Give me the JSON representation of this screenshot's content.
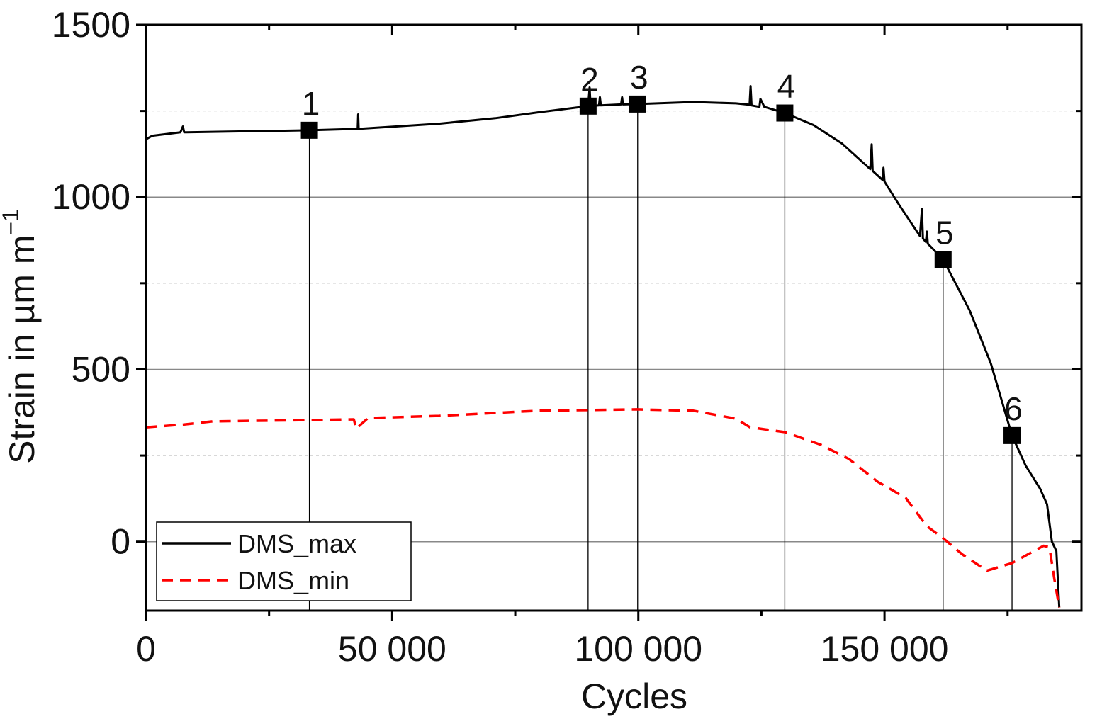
{
  "chart_data": {
    "type": "line",
    "title": "",
    "xlabel": "Cycles",
    "ylabel": "Strain in µm m",
    "ylabel_superscript": "−1",
    "xlim": [
      0,
      190000
    ],
    "ylim": [
      -200,
      1500
    ],
    "x_ticks": [
      0,
      50000,
      100000,
      150000
    ],
    "x_tick_labels": [
      "0",
      "50 000",
      "100 000",
      "150 000"
    ],
    "y_ticks": [
      0,
      500,
      1000,
      1500
    ],
    "y_tick_labels": [
      "0",
      "500",
      "1000",
      "1500"
    ],
    "x_minor_step": 25000,
    "y_minor_step": 250,
    "grid": true,
    "legend_position": "bottom-left",
    "colors": {
      "DMS_max": "#000000",
      "DMS_min": "#ff0000"
    },
    "series": [
      {
        "name": "DMS_max",
        "style": "solid",
        "x": [
          0,
          1290,
          7000,
          7500,
          7760,
          8200,
          33190,
          43000,
          43100,
          43200,
          59480,
          70980,
          79600,
          89800,
          90100,
          90300,
          92000,
          92200,
          92400,
          96500,
          96700,
          96900,
          99860,
          111200,
          119830,
          122600,
          122800,
          123000,
          124600,
          124800,
          125580,
          129750,
          135600,
          141400,
          147100,
          147400,
          147600,
          149600,
          149800,
          150000,
          152900,
          157200,
          157600,
          157800,
          158400,
          158600,
          158800,
          161900,
          167300,
          171600,
          175900,
          178700,
          181600,
          183000,
          184000,
          184900,
          185500
        ],
        "y": [
          1168,
          1178,
          1188,
          1205,
          1188,
          1188,
          1194,
          1198,
          1240,
          1198,
          1213,
          1229,
          1246,
          1264,
          1318,
          1264,
          1266,
          1290,
          1266,
          1269,
          1290,
          1269,
          1270,
          1276,
          1272,
          1268,
          1322,
          1266,
          1262,
          1285,
          1262,
          1244,
          1209,
          1155,
          1081,
          1153,
          1076,
          1050,
          1085,
          1045,
          979,
          887,
          965,
          880,
          870,
          900,
          865,
          819,
          671,
          517,
          308,
          220,
          154,
          109,
          0,
          -27,
          -191
        ]
      },
      {
        "name": "DMS_min",
        "style": "dashed",
        "x": [
          0,
          7760,
          13500,
          33190,
          42200,
          42700,
          45100,
          59500,
          79600,
          99700,
          111200,
          119800,
          122700,
          129750,
          137100,
          142800,
          148600,
          154300,
          158600,
          161900,
          165800,
          170800,
          175900,
          182300,
          183500,
          184500,
          185500
        ],
        "y": [
          332,
          340,
          349,
          353,
          355,
          328,
          359,
          365,
          380,
          384,
          380,
          357,
          332,
          318,
          281,
          240,
          174,
          127,
          45,
          10,
          -37,
          -84,
          -62,
          -12,
          -16,
          -109,
          -191
        ]
      }
    ],
    "annotations": [
      {
        "label": "1",
        "x": 33190,
        "y": 1194
      },
      {
        "label": "2",
        "x": 89800,
        "y": 1264
      },
      {
        "label": "3",
        "x": 99860,
        "y": 1270
      },
      {
        "label": "4",
        "x": 129750,
        "y": 1244
      },
      {
        "label": "5",
        "x": 161900,
        "y": 819
      },
      {
        "label": "6",
        "x": 175900,
        "y": 308
      }
    ],
    "legend": [
      "DMS_max",
      "DMS_min"
    ]
  }
}
